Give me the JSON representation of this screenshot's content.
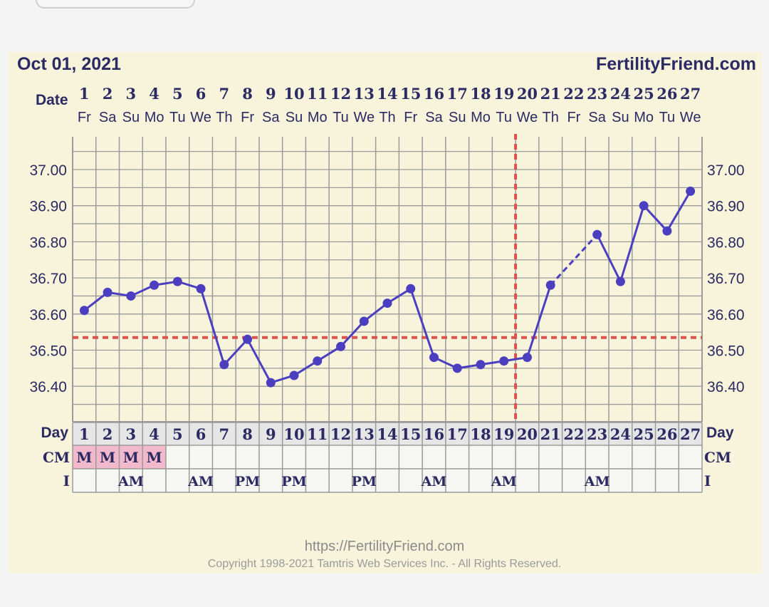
{
  "header": {
    "date_label": "Oct 01, 2021",
    "site": "FertilityFriend.com",
    "date_row_label": "Date"
  },
  "footer": {
    "url": "https://FertilityFriend.com",
    "copyright": "Copyright 1998-2021 Tamtris Web Services Inc. - All Rights Reserved."
  },
  "colors": {
    "line": "#4b3fc0",
    "coverline": "#d9534f",
    "grid": "#9a9a9a",
    "text": "#2b2a63",
    "mens": "#f2b8cc"
  },
  "chart_data": {
    "type": "line",
    "title": "",
    "x_label": "Day",
    "days": [
      1,
      2,
      3,
      4,
      5,
      6,
      7,
      8,
      9,
      10,
      11,
      12,
      13,
      14,
      15,
      16,
      17,
      18,
      19,
      20,
      21,
      22,
      23,
      24,
      25,
      26,
      27
    ],
    "weekdays": [
      "Fr",
      "Sa",
      "Su",
      "Mo",
      "Tu",
      "We",
      "Th",
      "Fr",
      "Sa",
      "Su",
      "Mo",
      "Tu",
      "We",
      "Th",
      "Fr",
      "Sa",
      "Su",
      "Mo",
      "Tu",
      "We",
      "Th",
      "Fr",
      "Sa",
      "Su",
      "Mo",
      "Tu",
      "We"
    ],
    "temperatures": [
      36.61,
      36.66,
      36.65,
      36.68,
      36.69,
      36.67,
      36.46,
      36.53,
      36.41,
      36.43,
      36.47,
      36.51,
      36.58,
      36.63,
      36.67,
      36.48,
      36.45,
      36.46,
      36.47,
      36.48,
      36.68,
      null,
      36.82,
      36.69,
      36.9,
      36.83,
      36.94
    ],
    "y_ticks": [
      "37.00",
      "36.90",
      "36.80",
      "36.70",
      "36.60",
      "36.50",
      "36.40"
    ],
    "ylim": [
      36.3,
      37.1
    ],
    "coverline": 36.535,
    "ovulation_day": 20,
    "grid": true,
    "cm_label": "CM",
    "cm": [
      "M",
      "M",
      "M",
      "M",
      "",
      "",
      "",
      "",
      "",
      "",
      "",
      "",
      "",
      "",
      "",
      "",
      "",
      "",
      "",
      "",
      "",
      "",
      "",
      "",
      "",
      "",
      ""
    ],
    "i_label": "I",
    "intercourse": [
      "",
      "",
      "AM",
      "",
      "",
      "AM",
      "",
      "PM",
      "",
      "PM",
      "",
      "",
      "PM",
      "",
      "",
      "AM",
      "",
      "",
      "AM",
      "",
      "",
      "",
      "AM",
      "",
      "",
      "",
      ""
    ]
  }
}
